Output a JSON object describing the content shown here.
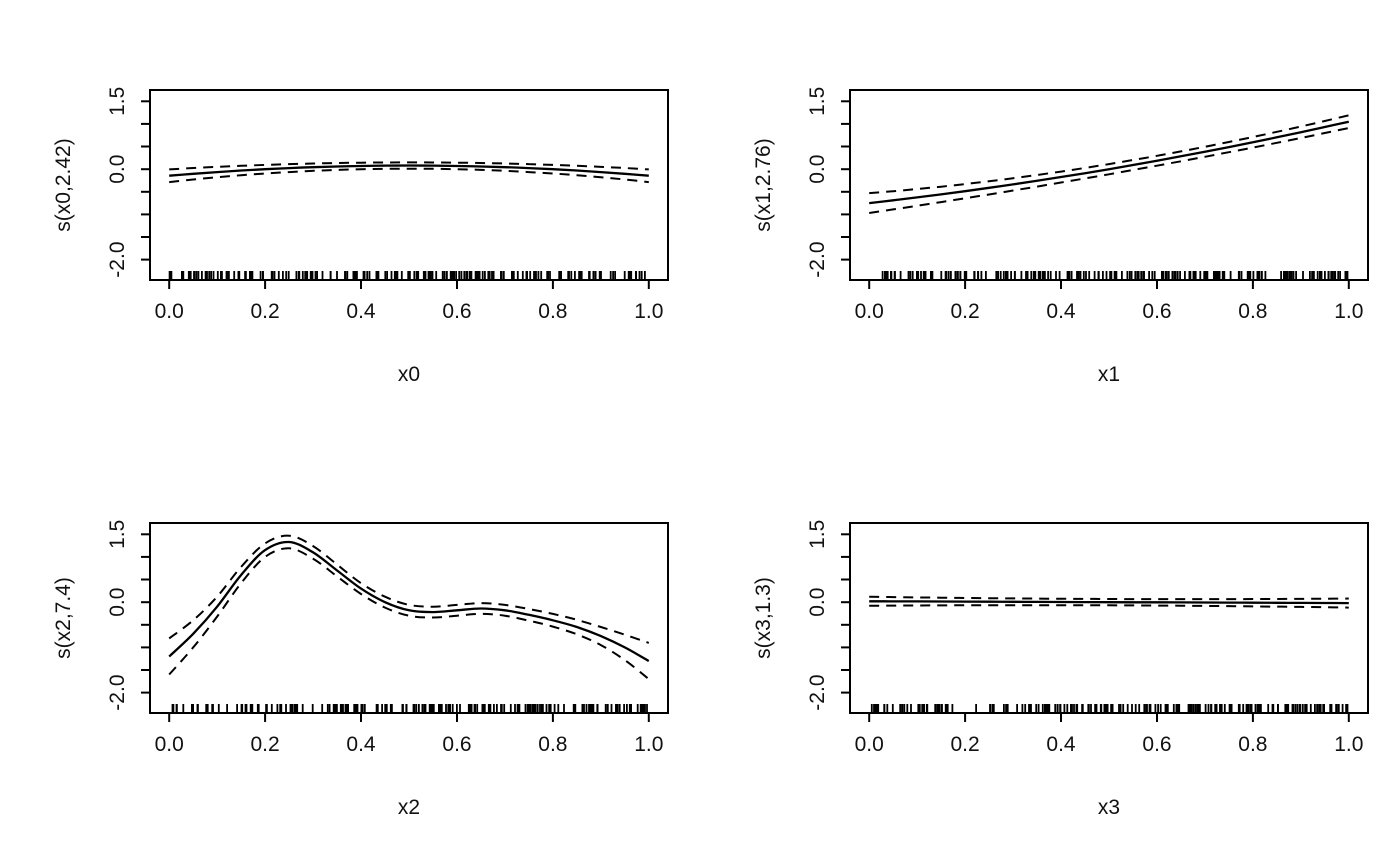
{
  "figure": {
    "background": "#ffffff",
    "line_color": "#000000",
    "text_color": "#111111",
    "layout": "2x2 grid of GAM smooth term plots with dashed confidence bands and rug marks"
  },
  "chart_data": [
    {
      "type": "line",
      "xlabel": "x0",
      "ylabel": "s(x0,2.42)",
      "xlim": [
        0,
        1
      ],
      "ylim": [
        -2.45,
        1.75
      ],
      "xticks": [
        0,
        0.2,
        0.4,
        0.6,
        0.8,
        1.0
      ],
      "xtick_labels": [
        "0.0",
        "0.2",
        "0.4",
        "0.6",
        "0.8",
        "1.0"
      ],
      "yticks": [
        -2.0,
        -1.5,
        -1.0,
        -0.5,
        0,
        0.5,
        1.0,
        1.5
      ],
      "ytick_labels": [
        "-2.0",
        "",
        "",
        "",
        "0.0",
        "",
        "",
        "1.5"
      ],
      "x": [
        0,
        0.05,
        0.1,
        0.15,
        0.2,
        0.25,
        0.3,
        0.35,
        0.4,
        0.45,
        0.5,
        0.55,
        0.6,
        0.65,
        0.7,
        0.75,
        0.8,
        0.85,
        0.9,
        0.95,
        1
      ],
      "fit": [
        -0.145,
        -0.102,
        -0.064,
        -0.03,
        -0.001,
        0.024,
        0.044,
        0.06,
        0.071,
        0.078,
        0.08,
        0.078,
        0.071,
        0.06,
        0.044,
        0.024,
        -0.001,
        -0.03,
        -0.064,
        -0.102,
        -0.145
      ],
      "upper": [
        -0.005,
        0.025,
        0.051,
        0.074,
        0.094,
        0.111,
        0.125,
        0.136,
        0.144,
        0.148,
        0.15,
        0.148,
        0.144,
        0.136,
        0.125,
        0.111,
        0.094,
        0.074,
        0.051,
        0.025,
        -0.005
      ],
      "lower": [
        -0.285,
        -0.229,
        -0.179,
        -0.134,
        -0.096,
        -0.064,
        -0.037,
        -0.016,
        -0.002,
        0.007,
        0.01,
        0.007,
        -0.002,
        -0.016,
        -0.037,
        -0.064,
        -0.096,
        -0.134,
        -0.179,
        -0.229,
        -0.285
      ],
      "rug": {
        "n": 190,
        "seed": 101
      }
    },
    {
      "type": "line",
      "xlabel": "x1",
      "ylabel": "s(x1,2.76)",
      "xlim": [
        0,
        1
      ],
      "ylim": [
        -2.45,
        1.75
      ],
      "xticks": [
        0,
        0.2,
        0.4,
        0.6,
        0.8,
        1.0
      ],
      "xtick_labels": [
        "0.0",
        "0.2",
        "0.4",
        "0.6",
        "0.8",
        "1.0"
      ],
      "yticks": [
        -2.0,
        -1.5,
        -1.0,
        -0.5,
        0,
        0.5,
        1.0,
        1.5
      ],
      "ytick_labels": [
        "-2.0",
        "",
        "",
        "",
        "0.0",
        "",
        "",
        "1.5"
      ],
      "x": [
        0,
        0.05,
        0.1,
        0.15,
        0.2,
        0.25,
        0.3,
        0.35,
        0.4,
        0.45,
        0.5,
        0.55,
        0.6,
        0.65,
        0.7,
        0.75,
        0.8,
        0.85,
        0.9,
        0.95,
        1
      ],
      "fit": [
        -0.75,
        -0.689,
        -0.624,
        -0.557,
        -0.486,
        -0.413,
        -0.336,
        -0.257,
        -0.174,
        -0.089,
        0,
        0.092,
        0.186,
        0.284,
        0.384,
        0.488,
        0.594,
        0.704,
        0.816,
        0.932,
        1.05
      ],
      "upper": [
        -0.53,
        -0.488,
        -0.439,
        -0.387,
        -0.329,
        -0.267,
        -0.2,
        -0.129,
        -0.053,
        0.027,
        0.113,
        0.202,
        0.295,
        0.393,
        0.495,
        0.601,
        0.711,
        0.825,
        0.943,
        1.065,
        1.19
      ],
      "lower": [
        -0.97,
        -0.89,
        -0.809,
        -0.727,
        -0.643,
        -0.559,
        -0.472,
        -0.385,
        -0.295,
        -0.205,
        -0.113,
        -0.018,
        0.077,
        0.175,
        0.273,
        0.375,
        0.477,
        0.583,
        0.689,
        0.799,
        0.91
      ],
      "rug": {
        "n": 190,
        "seed": 202
      }
    },
    {
      "type": "line",
      "xlabel": "x2",
      "ylabel": "s(x2,7.4)",
      "xlim": [
        0,
        1
      ],
      "ylim": [
        -2.45,
        1.75
      ],
      "xticks": [
        0,
        0.2,
        0.4,
        0.6,
        0.8,
        1.0
      ],
      "xtick_labels": [
        "0.0",
        "0.2",
        "0.4",
        "0.6",
        "0.8",
        "1.0"
      ],
      "yticks": [
        -2.0,
        -1.5,
        -1.0,
        -0.5,
        0,
        0.5,
        1.0,
        1.5
      ],
      "ytick_labels": [
        "-2.0",
        "",
        "",
        "",
        "0.0",
        "",
        "",
        "1.5"
      ],
      "x": [
        0,
        0.05,
        0.1,
        0.15,
        0.2,
        0.25,
        0.3,
        0.35,
        0.4,
        0.45,
        0.5,
        0.55,
        0.6,
        0.65,
        0.7,
        0.75,
        0.8,
        0.85,
        0.9,
        0.95,
        1
      ],
      "fit": [
        -1.2,
        -0.7,
        -0.1,
        0.6,
        1.15,
        1.33,
        1.1,
        0.7,
        0.3,
        0,
        -0.18,
        -0.22,
        -0.18,
        -0.14,
        -0.18,
        -0.28,
        -0.4,
        -0.55,
        -0.75,
        -1.0,
        -1.3
      ],
      "upper": [
        -0.8,
        -0.4,
        0.12,
        0.78,
        1.3,
        1.47,
        1.24,
        0.83,
        0.42,
        0.12,
        -0.06,
        -0.1,
        -0.06,
        -0.02,
        -0.06,
        -0.15,
        -0.26,
        -0.39,
        -0.55,
        -0.72,
        -0.9
      ],
      "lower": [
        -1.6,
        -1.0,
        -0.32,
        0.42,
        1.0,
        1.19,
        0.96,
        0.57,
        0.18,
        -0.12,
        -0.3,
        -0.34,
        -0.3,
        -0.26,
        -0.3,
        -0.41,
        -0.54,
        -0.71,
        -0.95,
        -1.28,
        -1.7
      ],
      "rug": {
        "n": 190,
        "seed": 303
      }
    },
    {
      "type": "line",
      "xlabel": "x3",
      "ylabel": "s(x3,1.3)",
      "xlim": [
        0,
        1
      ],
      "ylim": [
        -2.45,
        1.75
      ],
      "xticks": [
        0,
        0.2,
        0.4,
        0.6,
        0.8,
        1.0
      ],
      "xtick_labels": [
        "0.0",
        "0.2",
        "0.4",
        "0.6",
        "0.8",
        "1.0"
      ],
      "yticks": [
        -2.0,
        -1.5,
        -1.0,
        -0.5,
        0,
        0.5,
        1.0,
        1.5
      ],
      "ytick_labels": [
        "-2.0",
        "",
        "",
        "",
        "0.0",
        "",
        "",
        "1.5"
      ],
      "x": [
        0,
        0.05,
        0.1,
        0.15,
        0.2,
        0.25,
        0.3,
        0.35,
        0.4,
        0.45,
        0.5,
        0.55,
        0.6,
        0.65,
        0.7,
        0.75,
        0.8,
        0.85,
        0.9,
        0.95,
        1
      ],
      "fit": [
        0.02,
        0.018,
        0.016,
        0.014,
        0.012,
        0.01,
        0.008,
        0.006,
        0.004,
        0.002,
        0,
        -0.002,
        -0.004,
        -0.006,
        -0.008,
        -0.01,
        -0.012,
        -0.014,
        -0.016,
        -0.018,
        -0.02
      ],
      "upper": [
        0.12,
        0.112,
        0.105,
        0.099,
        0.093,
        0.088,
        0.083,
        0.079,
        0.075,
        0.072,
        0.07,
        0.068,
        0.067,
        0.067,
        0.067,
        0.068,
        0.069,
        0.071,
        0.073,
        0.076,
        0.08
      ],
      "lower": [
        -0.08,
        -0.076,
        -0.073,
        -0.071,
        -0.069,
        -0.068,
        -0.067,
        -0.067,
        -0.068,
        -0.068,
        -0.07,
        -0.072,
        -0.075,
        -0.079,
        -0.083,
        -0.088,
        -0.093,
        -0.099,
        -0.105,
        -0.112,
        -0.12
      ],
      "rug": {
        "n": 190,
        "seed": 404
      }
    }
  ]
}
